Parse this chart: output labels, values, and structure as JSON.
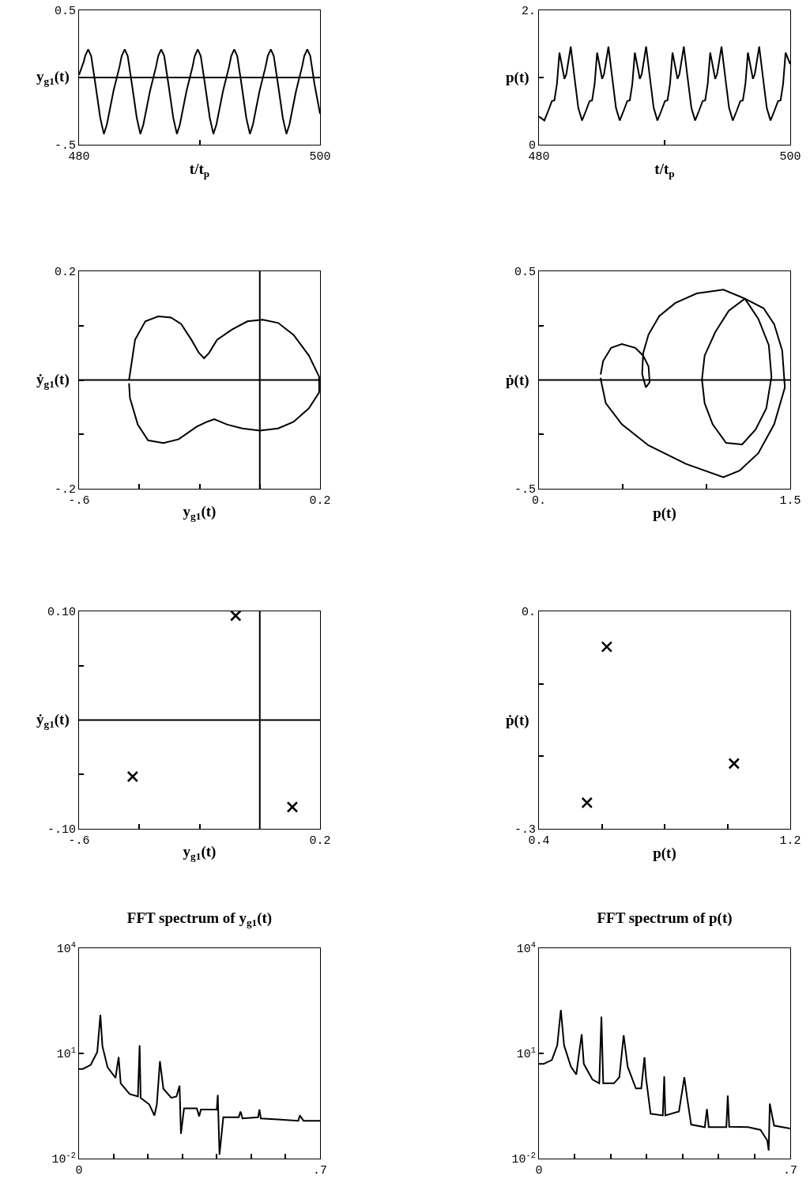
{
  "chart_data": [
    {
      "type": "line",
      "xlabel": "t/t$_{p}$",
      "ylabel": "y$_{g1}$(t)",
      "xlim": [
        480,
        500
      ],
      "ylim": [
        -0.5,
        0.5
      ],
      "xticks": [
        480,
        {
          "value": 490,
          "label": null
        },
        500
      ],
      "yticks": [
        {
          "value": -0.5,
          "label": "-.5"
        },
        {
          "value": 0,
          "label": null
        },
        0.5
      ],
      "ref_lines": [
        {
          "axis": "y",
          "value": 0
        }
      ],
      "x": [
        480,
        480.4,
        480.51,
        480.76,
        481.01,
        481.36,
        481.76,
        482.06,
        482.31,
        482.86,
        483.36,
        483.54,
        483.79,
        484.04,
        484.39,
        484.79,
        485.09,
        485.34,
        485.89,
        486.39,
        486.57,
        486.82,
        487.07,
        487.42,
        487.82,
        488.12,
        488.37,
        488.92,
        489.42,
        489.6,
        489.85,
        490.1,
        490.45,
        490.85,
        491.15,
        491.4,
        491.95,
        492.45,
        492.63,
        492.88,
        493.13,
        493.48,
        493.88,
        494.18,
        494.43,
        494.98,
        495.48,
        495.66,
        495.91,
        496.16,
        496.51,
        496.91,
        497.21,
        497.46,
        498.01,
        498.51,
        498.69,
        498.94,
        499.19,
        499.54,
        500
      ],
      "values": [
        0.02,
        0.12,
        0.16,
        0.21,
        0.16,
        -0.05,
        -0.3,
        -0.42,
        -0.35,
        -0.1,
        0.08,
        0.16,
        0.21,
        0.16,
        -0.05,
        -0.3,
        -0.42,
        -0.35,
        -0.1,
        0.08,
        0.16,
        0.21,
        0.16,
        -0.05,
        -0.3,
        -0.42,
        -0.35,
        -0.1,
        0.08,
        0.16,
        0.21,
        0.16,
        -0.05,
        -0.3,
        -0.42,
        -0.35,
        -0.1,
        0.08,
        0.16,
        0.21,
        0.16,
        -0.05,
        -0.3,
        -0.42,
        -0.35,
        -0.1,
        0.08,
        0.16,
        0.21,
        0.16,
        -0.05,
        -0.3,
        -0.42,
        -0.35,
        -0.1,
        0.08,
        0.16,
        0.21,
        0.16,
        -0.05,
        -0.27
      ]
    },
    {
      "type": "line",
      "xlabel": "t/t$_{p}$",
      "ylabel": "p(t)",
      "xlim": [
        480,
        500
      ],
      "ylim": [
        0,
        2
      ],
      "xticks": [
        480,
        {
          "value": 490,
          "label": null
        },
        500
      ],
      "yticks": [
        0,
        {
          "value": 1,
          "label": null
        },
        {
          "value": 2,
          "label": "2."
        }
      ],
      "x": [
        480,
        480.43,
        480.73,
        481.03,
        481.23,
        481.43,
        481.63,
        482.03,
        482.18,
        482.53,
        482.83,
        483.13,
        483.43,
        483.73,
        484.03,
        484.23,
        484.43,
        484.63,
        485.03,
        485.18,
        485.53,
        485.83,
        486.13,
        486.43,
        486.73,
        487.03,
        487.23,
        487.43,
        487.63,
        488.03,
        488.18,
        488.53,
        488.83,
        489.13,
        489.43,
        489.73,
        490.03,
        490.23,
        490.43,
        490.63,
        491.03,
        491.18,
        491.53,
        491.83,
        492.13,
        492.43,
        492.73,
        493.03,
        493.23,
        493.43,
        493.63,
        494.03,
        494.18,
        494.53,
        494.83,
        495.13,
        495.43,
        495.73,
        496.03,
        496.23,
        496.43,
        496.63,
        497.03,
        497.18,
        497.53,
        497.83,
        498.13,
        498.43,
        498.73,
        499.03,
        499.23,
        499.43,
        499.63,
        500
      ],
      "values": [
        0.42,
        0.36,
        0.5,
        0.65,
        0.66,
        0.9,
        1.37,
        0.98,
        1.05,
        1.46,
        1.0,
        0.55,
        0.36,
        0.5,
        0.65,
        0.66,
        0.9,
        1.37,
        0.98,
        1.05,
        1.46,
        1.0,
        0.55,
        0.36,
        0.5,
        0.65,
        0.66,
        0.9,
        1.37,
        0.98,
        1.05,
        1.46,
        1.0,
        0.55,
        0.36,
        0.5,
        0.65,
        0.66,
        0.9,
        1.37,
        0.98,
        1.05,
        1.46,
        1.0,
        0.55,
        0.36,
        0.5,
        0.65,
        0.66,
        0.9,
        1.37,
        0.98,
        1.05,
        1.46,
        1.0,
        0.55,
        0.36,
        0.5,
        0.65,
        0.66,
        0.9,
        1.37,
        0.98,
        1.05,
        1.46,
        1.0,
        0.55,
        0.36,
        0.5,
        0.65,
        0.66,
        0.9,
        1.37,
        1.2
      ]
    },
    {
      "type": "line",
      "xlabel": "y$_{g1}$(t)",
      "ylabel": "ẏ$_{g1}$(t)",
      "xlim": [
        -0.6,
        0.2
      ],
      "ylim": [
        -0.2,
        0.2
      ],
      "xticks": [
        {
          "value": -0.6,
          "label": "-.6"
        },
        {
          "value": -0.4,
          "label": null
        },
        {
          "value": -0.2,
          "label": null
        },
        {
          "value": 0,
          "label": null
        },
        0.2
      ],
      "yticks": [
        {
          "value": -0.2,
          "label": "-.2"
        },
        {
          "value": -0.1,
          "label": null
        },
        {
          "value": 0,
          "label": null
        },
        {
          "value": 0.1,
          "label": null
        },
        0.2
      ],
      "ref_lines": [
        {
          "axis": "x",
          "value": 0
        },
        {
          "axis": "y",
          "value": 0
        }
      ],
      "x": [
        -0.434,
        -0.414,
        -0.38,
        -0.337,
        -0.295,
        -0.261,
        -0.227,
        -0.202,
        -0.185,
        -0.168,
        -0.142,
        -0.092,
        -0.041,
        0.01,
        0.061,
        0.112,
        0.163,
        0.197,
        0.197,
        0.163,
        0.112,
        0.061,
        0,
        -0.058,
        -0.108,
        -0.151,
        -0.176,
        -0.21,
        -0.269,
        -0.32,
        -0.371,
        -0.405,
        -0.431,
        -0.434
      ],
      "values": [
        0,
        0.074,
        0.108,
        0.117,
        0.115,
        0.103,
        0.074,
        0.05,
        0.04,
        0.05,
        0.074,
        0.093,
        0.108,
        0.111,
        0.105,
        0.083,
        0.045,
        0.006,
        -0.023,
        -0.052,
        -0.077,
        -0.089,
        -0.093,
        -0.089,
        -0.082,
        -0.072,
        -0.077,
        -0.086,
        -0.109,
        -0.116,
        -0.111,
        -0.082,
        -0.033,
        -0.006
      ]
    },
    {
      "type": "line",
      "xlabel": "p(t)",
      "ylabel": "ṗ(t)",
      "xlim": [
        0,
        1.5
      ],
      "ylim": [
        -0.5,
        0.5
      ],
      "xticks": [
        {
          "value": 0,
          "label": "0."
        },
        {
          "value": 0.5,
          "label": null
        },
        {
          "value": 1,
          "label": null
        },
        1.5
      ],
      "yticks": [
        {
          "value": -0.5,
          "label": "-.5"
        },
        {
          "value": -0.25,
          "label": null
        },
        {
          "value": 0.25,
          "label": null
        },
        0.5
      ],
      "ref_lines": [
        {
          "axis": "y",
          "value": 0
        }
      ],
      "x": [
        0.367,
        0.399,
        0.495,
        0.654,
        0.878,
        1.101,
        1.197,
        1.309,
        1.404,
        1.468,
        1.452,
        1.404,
        1.341,
        1.229,
        1.133,
        1.053,
        0.989,
        0.973,
        0.989,
        1.037,
        1.117,
        1.213,
        1.293,
        1.357,
        1.388,
        1.372,
        1.309,
        1.229,
        1.101,
        0.942,
        0.814,
        0.718,
        0.654,
        0.622,
        0.616,
        0.638,
        0.661,
        0.654,
        0.622,
        0.575,
        0.495,
        0.431,
        0.383,
        0.368
      ],
      "values": [
        0.01,
        -0.107,
        -0.204,
        -0.301,
        -0.386,
        -0.447,
        -0.417,
        -0.337,
        -0.204,
        -0.034,
        0.136,
        0.257,
        0.33,
        0.374,
        0.318,
        0.221,
        0.112,
        0.002,
        -0.107,
        -0.204,
        -0.289,
        -0.296,
        -0.228,
        -0.131,
        0.015,
        0.16,
        0.282,
        0.374,
        0.415,
        0.398,
        0.354,
        0.294,
        0.209,
        0.124,
        0.027,
        -0.034,
        -0.01,
        0.063,
        0.112,
        0.148,
        0.165,
        0.148,
        0.087,
        0.025
      ]
    },
    {
      "type": "scatter",
      "marker": "cross",
      "xlabel": "y$_{g1}$(t)",
      "ylabel": "ẏ$_{g1}$(t)",
      "xlim": [
        -0.6,
        0.2
      ],
      "ylim": [
        -0.1,
        0.1
      ],
      "xticks": [
        {
          "value": -0.6,
          "label": "-.6"
        },
        {
          "value": -0.4,
          "label": null
        },
        {
          "value": -0.2,
          "label": null
        },
        0.2
      ],
      "yticks": [
        {
          "value": -0.1,
          "label": "-.10"
        },
        {
          "value": -0.05,
          "label": null
        },
        {
          "value": 0.05,
          "label": null
        },
        {
          "value": 0.1,
          "label": "0.10"
        }
      ],
      "ref_lines": [
        {
          "axis": "x",
          "value": 0
        },
        {
          "axis": "y",
          "value": 0
        }
      ],
      "x": [
        -0.08,
        -0.422,
        0.108
      ],
      "values": [
        0.096,
        -0.052,
        -0.08
      ]
    },
    {
      "type": "scatter",
      "marker": "cross",
      "xlabel": "p(t)",
      "ylabel": "ṗ(t)",
      "xlim": [
        0.4,
        1.2
      ],
      "ylim": [
        -0.3,
        0
      ],
      "xticks": [
        0.4,
        {
          "value": 0.6,
          "label": null
        },
        {
          "value": 0.8,
          "label": null
        },
        {
          "value": 1,
          "label": null
        },
        1.2
      ],
      "yticks": [
        {
          "value": -0.3,
          "label": "-.3"
        },
        {
          "value": -0.2,
          "label": null
        },
        {
          "value": -0.1,
          "label": null
        },
        {
          "value": 0,
          "label": "0."
        }
      ],
      "x": [
        0.616,
        1.021,
        0.553
      ],
      "values": [
        -0.049,
        -0.21,
        -0.264
      ]
    },
    {
      "type": "line",
      "title": "FFT spectrum of y$_{g1}$(t)",
      "log": "y",
      "xlim": [
        0,
        0.7
      ],
      "ylim": [
        0.01,
        10000
      ],
      "xticks": [
        0,
        {
          "value": 0.1,
          "label": null
        },
        {
          "value": 0.2,
          "label": null
        },
        {
          "value": 0.3,
          "label": null
        },
        {
          "value": 0.4,
          "label": null
        },
        {
          "value": 0.5,
          "label": null
        },
        {
          "value": 0.6,
          "label": null
        },
        {
          "value": 0.7,
          "label": ".7"
        }
      ],
      "yticks": [
        {
          "value": 0.01,
          "label": "10$^{-2}$"
        },
        {
          "value": 10,
          "label": "10$^{1}$"
        },
        {
          "value": 10000,
          "label": "10$^{4}$"
        }
      ],
      "x": [
        0,
        0.011,
        0.034,
        0.053,
        0.062,
        0.068,
        0.083,
        0.106,
        0.115,
        0.121,
        0.147,
        0.171,
        0.176,
        0.179,
        0.204,
        0.219,
        0.226,
        0.235,
        0.245,
        0.268,
        0.283,
        0.292,
        0.296,
        0.305,
        0.342,
        0.349,
        0.354,
        0.4,
        0.403,
        0.408,
        0.419,
        0.464,
        0.469,
        0.475,
        0.52,
        0.524,
        0.528,
        0.577,
        0.637,
        0.641,
        0.652,
        0.7
      ],
      "values": [
        3.6,
        3.6,
        4.7,
        11,
        126,
        16,
        4.0,
        2.0,
        7.9,
        1.4,
        0.69,
        0.59,
        17,
        0.54,
        0.35,
        0.17,
        0.35,
        6.0,
        0.98,
        0.54,
        0.59,
        1.2,
        0.051,
        0.27,
        0.27,
        0.16,
        0.25,
        0.25,
        0.65,
        0.013,
        0.15,
        0.15,
        0.22,
        0.14,
        0.15,
        0.25,
        0.14,
        0.13,
        0.12,
        0.17,
        0.12,
        0.12
      ]
    },
    {
      "type": "line",
      "title": "FFT spectrum of p(t)",
      "log": "y",
      "xlim": [
        0,
        0.7
      ],
      "ylim": [
        0.01,
        10000
      ],
      "xticks": [
        0,
        {
          "value": 0.1,
          "label": null
        },
        {
          "value": 0.2,
          "label": null
        },
        {
          "value": 0.3,
          "label": null
        },
        {
          "value": 0.4,
          "label": null
        },
        {
          "value": 0.5,
          "label": null
        },
        {
          "value": 0.6,
          "label": null
        },
        {
          "value": 0.7,
          "label": ".7"
        }
      ],
      "yticks": [
        {
          "value": 0.01,
          "label": "10$^{-2}$"
        },
        {
          "value": 10,
          "label": "10$^{1}$"
        },
        {
          "value": 10000,
          "label": "10$^{4}$"
        }
      ],
      "x": [
        0,
        0.013,
        0.036,
        0.051,
        0.061,
        0.07,
        0.089,
        0.104,
        0.119,
        0.125,
        0.149,
        0.168,
        0.174,
        0.179,
        0.209,
        0.224,
        0.236,
        0.247,
        0.27,
        0.285,
        0.294,
        0.298,
        0.311,
        0.345,
        0.349,
        0.352,
        0.39,
        0.405,
        0.413,
        0.424,
        0.462,
        0.468,
        0.473,
        0.522,
        0.526,
        0.53,
        0.583,
        0.617,
        0.636,
        0.64,
        0.643,
        0.655,
        0.7
      ],
      "values": [
        5.0,
        5.0,
        6.5,
        17,
        174,
        17,
        4.2,
        2.5,
        35,
        5.0,
        1.8,
        1.4,
        112,
        1.4,
        1.4,
        2.1,
        33,
        4.2,
        1.0,
        1.0,
        7.8,
        2.1,
        0.19,
        0.17,
        2.2,
        0.17,
        0.22,
        2.1,
        0.52,
        0.093,
        0.079,
        0.26,
        0.079,
        0.079,
        0.63,
        0.081,
        0.079,
        0.066,
        0.033,
        0.017,
        0.37,
        0.087,
        0.072
      ]
    }
  ]
}
